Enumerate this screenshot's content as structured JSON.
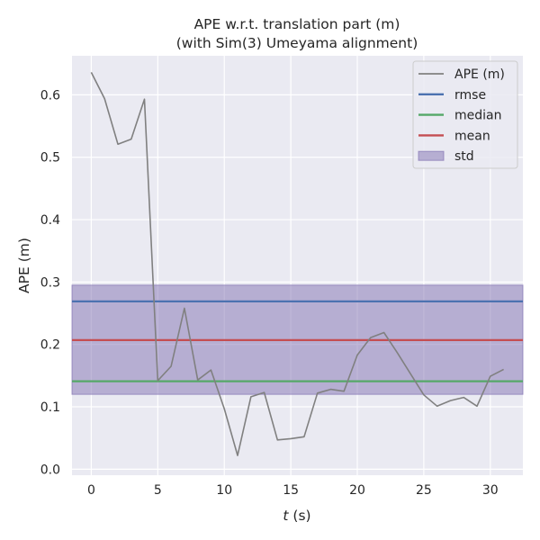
{
  "chart_data": {
    "type": "line",
    "title": [
      "APE w.r.t. translation part (m)",
      "(with Sim(3) Umeyama alignment)"
    ],
    "xlabel_var": "t",
    "xlabel_unit": " (s)",
    "ylabel": "APE (m)",
    "xlim": [
      -1.45,
      32.45
    ],
    "ylim": [
      -0.0096,
      0.6626
    ],
    "xticks": [
      0,
      5,
      10,
      15,
      20,
      25,
      30
    ],
    "xtick_labels": [
      "0",
      "5",
      "10",
      "15",
      "20",
      "25",
      "30"
    ],
    "yticks": [
      0.0,
      0.1,
      0.2,
      0.3,
      0.4,
      0.5,
      0.6
    ],
    "ytick_labels": [
      "0.0",
      "0.1",
      "0.2",
      "0.3",
      "0.4",
      "0.5",
      "0.6"
    ],
    "grid": true,
    "legend_position": "top-right",
    "series": [
      {
        "name": "APE (m)",
        "color": "#808080",
        "x": [
          0,
          1,
          2,
          3,
          4,
          5,
          6,
          7,
          8,
          9,
          10,
          11,
          12,
          13,
          14,
          15,
          16,
          17,
          18,
          19,
          20,
          21,
          22,
          23,
          24,
          25,
          26,
          27,
          28,
          29,
          30,
          31
        ],
        "y": [
          0.636,
          0.594,
          0.521,
          0.529,
          0.593,
          0.142,
          0.165,
          0.258,
          0.143,
          0.159,
          0.097,
          0.022,
          0.116,
          0.123,
          0.047,
          0.049,
          0.052,
          0.122,
          0.128,
          0.125,
          0.183,
          0.211,
          0.219,
          0.187,
          0.153,
          0.119,
          0.101,
          0.11,
          0.115,
          0.101,
          0.149,
          0.16
        ]
      }
    ],
    "stats": {
      "rmse": {
        "name": "rmse",
        "value": 0.269,
        "color": "#4c72b0"
      },
      "median": {
        "name": "median",
        "value": 0.141,
        "color": "#55a868"
      },
      "mean": {
        "name": "mean",
        "value": 0.207,
        "color": "#c44e52"
      },
      "std": {
        "name": "std",
        "lower": 0.12,
        "upper": 0.295,
        "color": "#8172b2"
      }
    },
    "colors": {
      "background": "#eaeaf2",
      "grid": "#ffffff"
    }
  }
}
